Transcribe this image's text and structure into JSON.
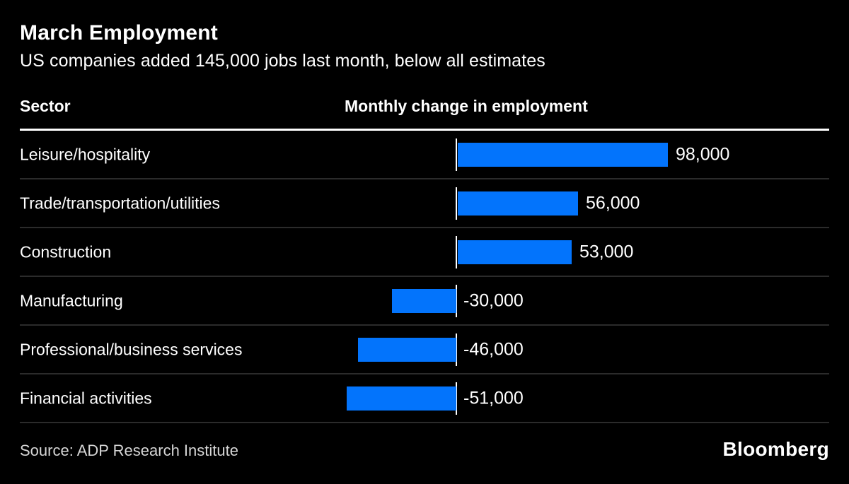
{
  "header": {
    "title": "March Employment",
    "subtitle": "US companies added 145,000 jobs last month, below all estimates"
  },
  "columns": {
    "sector": "Sector",
    "value": "Monthly change in employment"
  },
  "chart_data": {
    "type": "bar",
    "orientation": "horizontal",
    "title": "March Employment",
    "subtitle": "US companies added 145,000 jobs last month, below all estimates",
    "xlabel": "Monthly change in employment",
    "ylabel": "Sector",
    "categories": [
      "Leisure/hospitality",
      "Trade/transportation/utilities",
      "Construction",
      "Manufacturing",
      "Professional/business services",
      "Financial activities"
    ],
    "values": [
      98000,
      56000,
      53000,
      -30000,
      -46000,
      -51000
    ],
    "value_labels": [
      "98,000",
      "56,000",
      "53,000",
      "-30,000",
      "-46,000",
      "-51,000"
    ],
    "xlim": [
      -60000,
      180000
    ],
    "grid": false,
    "legend": false,
    "zero_baseline": true
  },
  "colors": {
    "background": "#000000",
    "bar": "#0374fc",
    "text": "#ffffff",
    "separator": "#2b2b2b",
    "source_text": "#d6d6d6"
  },
  "footer": {
    "source": "Source: ADP Research Institute",
    "brand": "Bloomberg"
  }
}
